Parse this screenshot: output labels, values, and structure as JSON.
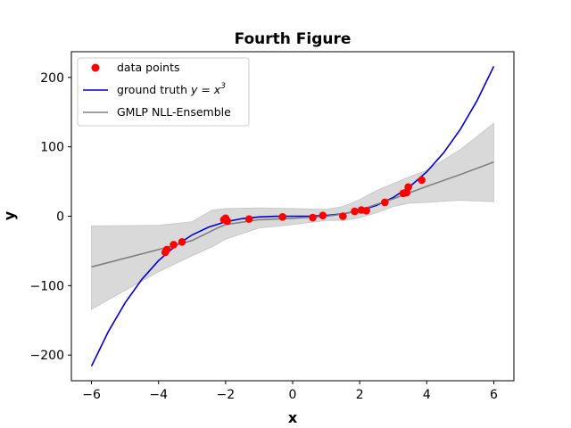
{
  "chart_data": {
    "type": "scatter",
    "title": "Fourth Figure",
    "xlabel": "x",
    "ylabel": "y",
    "xlim": [
      -6.6,
      6.6
    ],
    "ylim": [
      -237,
      237
    ],
    "xticks": [
      -6,
      -4,
      -2,
      0,
      2,
      4,
      6
    ],
    "yticks": [
      -200,
      -100,
      0,
      100,
      200
    ],
    "xtick_labels": [
      "−6",
      "−4",
      "−2",
      "0",
      "2",
      "4",
      "6"
    ],
    "ytick_labels": [
      "−200",
      "−100",
      "0",
      "100",
      "200"
    ],
    "grid": false,
    "legend_position": "upper-left",
    "colors": {
      "points": "#ff0000",
      "truth": "#0000cc",
      "mean": "#808080",
      "band": "#d9d9d9"
    },
    "series": [
      {
        "name": "data points",
        "kind": "scatter",
        "x": [
          -3.8,
          -3.75,
          -3.55,
          -3.3,
          -2.05,
          -2.0,
          -1.95,
          -1.3,
          -0.3,
          0.6,
          0.9,
          1.5,
          1.85,
          2.05,
          2.2,
          2.75,
          3.3,
          3.4,
          3.45,
          3.85
        ],
        "y": [
          -52,
          -48,
          -41,
          -37,
          -5,
          -3,
          -7,
          -4,
          -1,
          -2,
          1,
          0,
          7,
          9,
          8,
          20,
          33,
          34,
          42,
          52
        ]
      },
      {
        "name": "ground truth $y = x^3$",
        "kind": "line",
        "x": [
          -6,
          -5.5,
          -5,
          -4.5,
          -4,
          -3.5,
          -3,
          -2.5,
          -2,
          -1.5,
          -1,
          -0.5,
          0,
          0.5,
          1,
          1.5,
          2,
          2.5,
          3,
          3.5,
          4,
          4.5,
          5,
          5.5,
          6
        ],
        "y": [
          -216,
          -166.4,
          -125,
          -91.1,
          -64,
          -42.9,
          -27,
          -15.6,
          -8,
          -3.4,
          -1,
          -0.1,
          0,
          0.1,
          1,
          3.4,
          8,
          15.6,
          27,
          42.9,
          64,
          91.1,
          125,
          166.4,
          216
        ]
      },
      {
        "name": "GMLP NLL-Ensemble",
        "kind": "line",
        "x": [
          -6,
          -4,
          -3,
          -2.2,
          -2,
          -1,
          0,
          1,
          1.5,
          2,
          2.5,
          3,
          3.5,
          4,
          5,
          6
        ],
        "y": [
          -73,
          -48,
          -35,
          -16,
          -12,
          -5,
          -3,
          0,
          3,
          9,
          17,
          25,
          34,
          43,
          60,
          78
        ]
      }
    ],
    "uncertainty_band": {
      "x": [
        -6,
        -4,
        -3,
        -2.4,
        -2,
        -1,
        0,
        1,
        1.5,
        2,
        2.5,
        3,
        3.5,
        4,
        5,
        6
      ],
      "upper": [
        -14,
        -13,
        -8,
        9,
        11,
        12,
        11,
        10,
        14,
        24,
        37,
        47,
        57,
        66,
        96,
        134
      ],
      "lower": [
        -134,
        -80,
        -57,
        -44,
        -33,
        -17,
        -12,
        -6,
        -6,
        -2,
        5,
        14,
        19,
        20,
        23,
        21
      ]
    },
    "legend": [
      "data points",
      "ground truth y = x³",
      "GMLP NLL-Ensemble"
    ],
    "legend_parts": {
      "truth_prefix": "ground truth ",
      "truth_math": "y = x",
      "truth_exp": "3"
    }
  }
}
